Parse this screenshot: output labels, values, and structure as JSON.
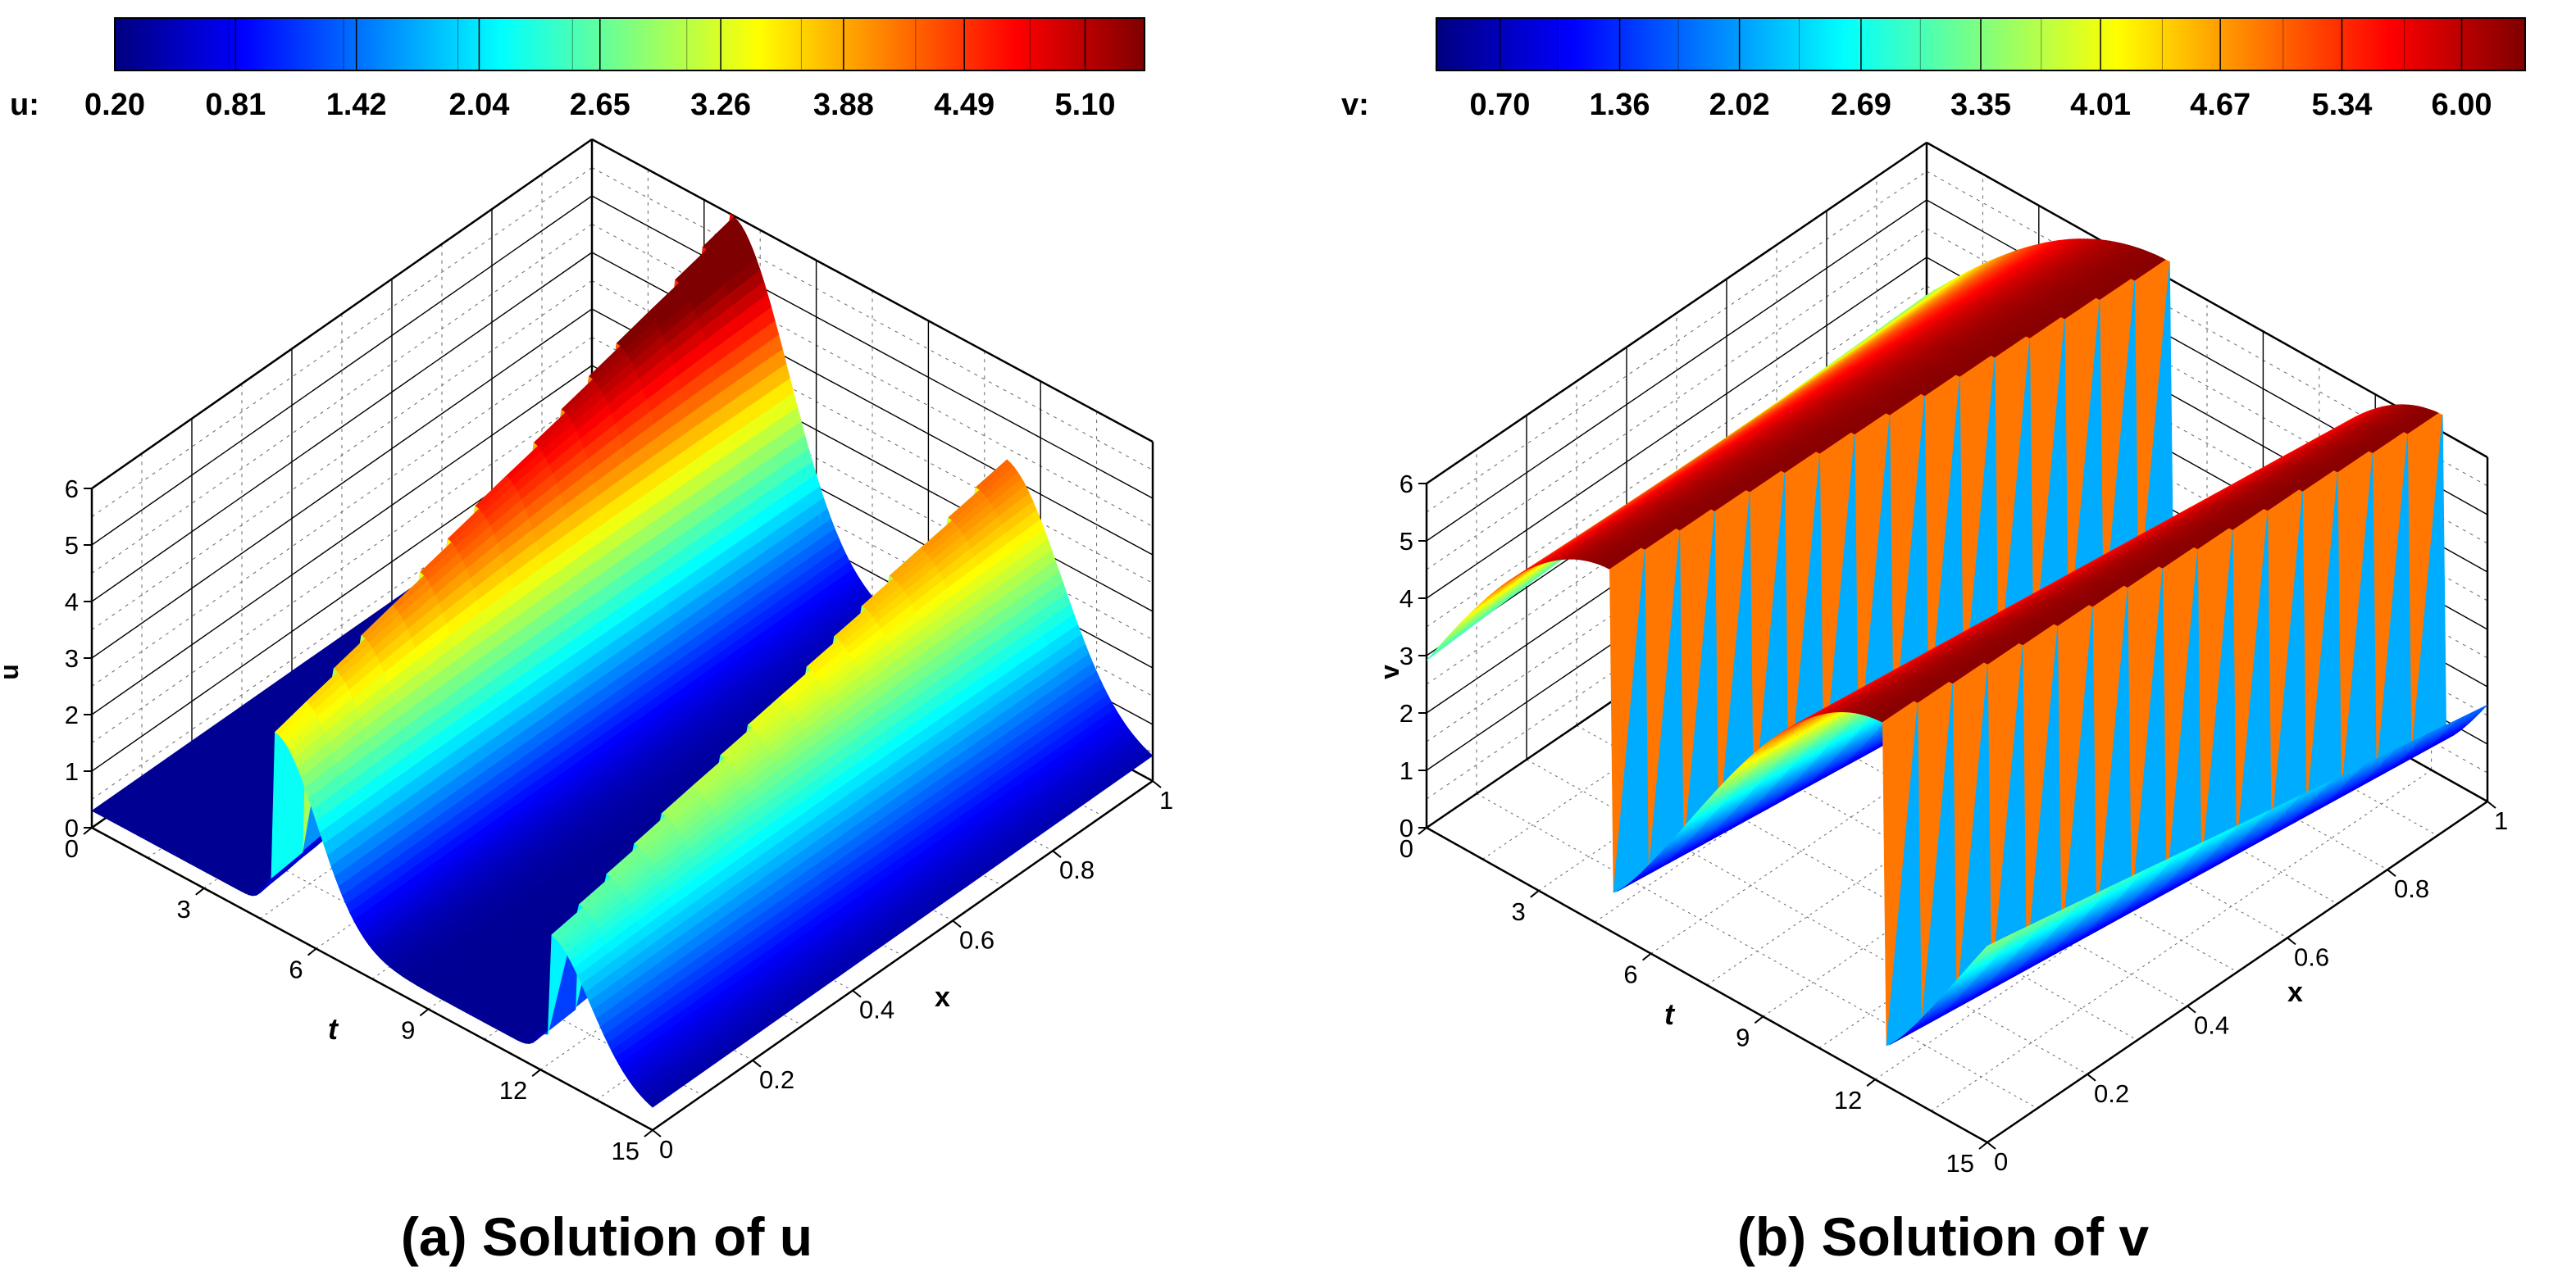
{
  "colormap": [
    "#00007f",
    "#0000ff",
    "#007fff",
    "#00ffff",
    "#7fff7f",
    "#ffff00",
    "#ff7f00",
    "#ff0000",
    "#7f0000"
  ],
  "chart_data": [
    {
      "type": "surface",
      "title": "(a) Solution of u",
      "colorbar": {
        "label": "u:",
        "tick_labels": [
          "0.20",
          "0.81",
          "1.42",
          "2.04",
          "2.65",
          "3.26",
          "3.88",
          "4.49",
          "5.10"
        ],
        "range": [
          0.2,
          5.4
        ]
      },
      "z_axis": {
        "label": "u",
        "ticks": [
          "0",
          "1",
          "2",
          "3",
          "4",
          "5",
          "6"
        ],
        "range": [
          0,
          6
        ]
      },
      "t_axis": {
        "label": "t",
        "ticks": [
          "0",
          "3",
          "6",
          "9",
          "12",
          "15"
        ],
        "range": [
          0,
          15
        ]
      },
      "x_axis": {
        "label": "x",
        "ticks": [
          "0",
          "0.2",
          "0.4",
          "0.6",
          "0.8",
          "1"
        ],
        "range": [
          0,
          1
        ]
      },
      "surface": {
        "base": 0.3,
        "peaks": [
          {
            "t_center": 5.5,
            "amplitude": 5.7,
            "rise_at_x0": 0.6,
            "rise_at_x1": 1.0
          },
          {
            "t_center": 12.8,
            "amplitude": 4.0,
            "rise_at_x0": 0.45,
            "rise_at_x1": 0.7
          }
        ]
      }
    },
    {
      "type": "surface",
      "title": "(b) Solution of v",
      "colorbar": {
        "label": "v:",
        "tick_labels": [
          "0.70",
          "1.36",
          "2.02",
          "2.69",
          "3.35",
          "4.01",
          "4.67",
          "5.34",
          "6.00"
        ],
        "range": [
          0.35,
          6.35
        ]
      },
      "z_axis": {
        "label": "v",
        "ticks": [
          "0",
          "1",
          "2",
          "3",
          "4",
          "5",
          "6"
        ],
        "range": [
          0,
          6
        ]
      },
      "t_axis": {
        "label": "t",
        "ticks": [
          "0",
          "3",
          "6",
          "9",
          "12",
          "15"
        ],
        "range": [
          0,
          15
        ]
      },
      "x_axis": {
        "label": "x",
        "ticks": [
          "0",
          "0.2",
          "0.4",
          "0.6",
          "0.8",
          "1"
        ],
        "range": [
          0,
          1
        ]
      },
      "surface": {
        "min": 0.7,
        "max": 6.3,
        "drops": [
          {
            "t_center": 5.0,
            "note": "sharp drop"
          },
          {
            "t_center": 12.3,
            "note": "sharp drop"
          }
        ]
      }
    }
  ]
}
